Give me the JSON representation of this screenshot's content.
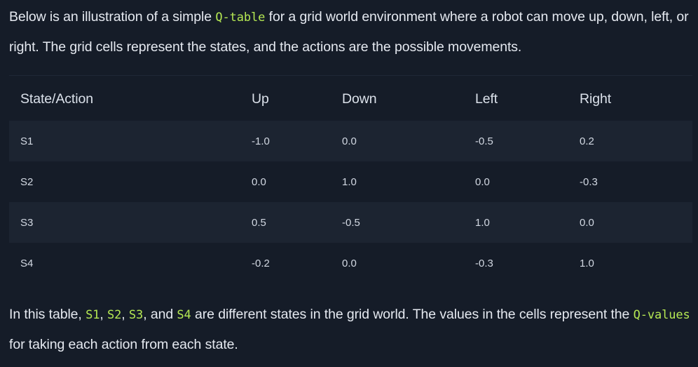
{
  "intro": {
    "text_before": "Below is an illustration of a simple ",
    "code": "Q-table",
    "text_after": " for a grid world environment where a robot can move up, down, left, or right. The grid cells represent the states, and the actions are the possible movements."
  },
  "table": {
    "headers": [
      "State/Action",
      "Up",
      "Down",
      "Left",
      "Right"
    ],
    "rows": [
      [
        "S1",
        "-1.0",
        "0.0",
        "-0.5",
        "0.2"
      ],
      [
        "S2",
        "0.0",
        "1.0",
        "0.0",
        "-0.3"
      ],
      [
        "S3",
        "0.5",
        "-0.5",
        "1.0",
        "0.0"
      ],
      [
        "S4",
        "-0.2",
        "0.0",
        "-0.3",
        "1.0"
      ]
    ]
  },
  "outro": {
    "t0": "In this table, ",
    "s1": "S1",
    "t1": ", ",
    "s2": "S2",
    "t2": ", ",
    "s3": "S3",
    "t3": ", and ",
    "s4": "S4",
    "t4": " are different states in the grid world. The values in the cells represent the ",
    "code": "Q-values",
    "t5": " for taking each action from each state."
  },
  "colors": {
    "background": "#151c28",
    "row_stripe": "#1c2431",
    "inline_code": "#b5e853",
    "text": "#e5e9f0"
  }
}
